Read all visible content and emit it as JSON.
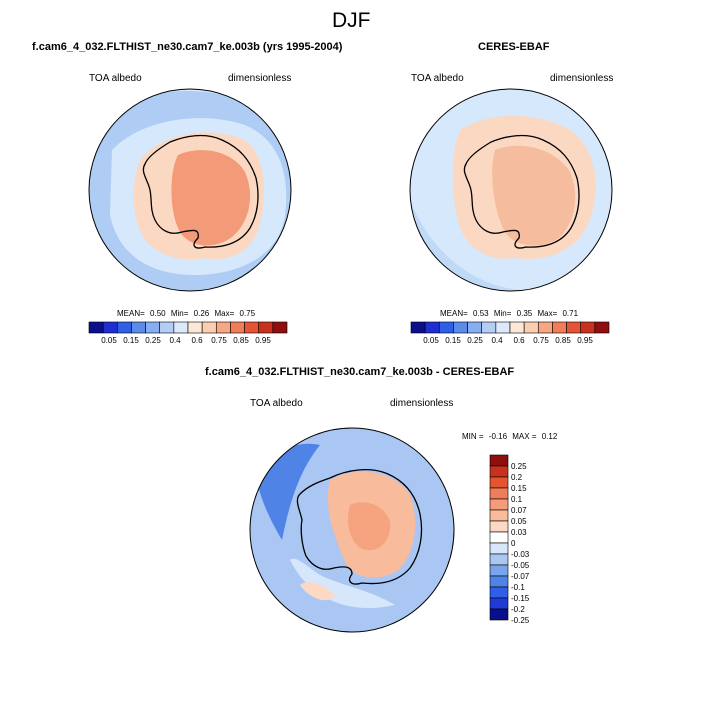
{
  "figure": {
    "title": "DJF",
    "colors": {
      "ocean": "#d6e8fb",
      "ocean_low": "#b7d2f6",
      "ocean_mid": "#8fb5ef",
      "ice_low": "#fbd8c2",
      "ice_mid": "#f5b595",
      "ice_high": "#f39a78",
      "coast": "#000000"
    }
  },
  "panel_model": {
    "title": "f.cam6_4_032.FLTHIST_ne30.cam7_ke.003b (yrs 1995-2004)",
    "left_label": "TOA albedo",
    "right_label": "dimensionless",
    "stats": {
      "mean_label": "MEAN=",
      "mean": "0.50",
      "min_label": "Min=",
      "min": "0.26",
      "max_label": "Max=",
      "max": "0.75"
    }
  },
  "panel_obs": {
    "title": "CERES-EBAF",
    "left_label": "TOA albedo",
    "right_label": "dimensionless",
    "stats": {
      "mean_label": "MEAN=",
      "mean": "0.53",
      "min_label": "Min=",
      "min": "0.35",
      "max_label": "Max=",
      "max": "0.71"
    }
  },
  "panel_diff": {
    "title": "f.cam6_4_032.FLTHIST_ne30.cam7_ke.003b - CERES-EBAF",
    "left_label": "TOA albedo",
    "right_label": "dimensionless",
    "stats": {
      "min_label": "MIN =",
      "min": "-0.16",
      "max_label": "MAX =",
      "max": "0.12"
    }
  },
  "colorbar_abs": {
    "colors": [
      "#0a0f8c",
      "#1f2ed0",
      "#2f5fe6",
      "#5d8be9",
      "#86aef0",
      "#b3cdf5",
      "#dbe9fb",
      "#fde7d6",
      "#fbcdb1",
      "#f6a783",
      "#ef7d58",
      "#e55535",
      "#c9311f",
      "#8e0f0e"
    ],
    "labels": [
      "0.05",
      "0.15",
      "0.25",
      "0.4",
      "0.6",
      "0.75",
      "0.85",
      "0.95"
    ]
  },
  "colorbar_diff": {
    "colors": [
      "#8e0f0e",
      "#c9311f",
      "#e5532f",
      "#ef7d58",
      "#f49d78",
      "#f8bc9c",
      "#fbd9c4",
      "#ffffff",
      "#d6e6fb",
      "#aac7f4",
      "#7aa5ec",
      "#4f83e6",
      "#2f5fe6",
      "#1f3ad6",
      "#0a0f8c"
    ],
    "labels": [
      "0.25",
      "0.2",
      "0.15",
      "0.1",
      "0.07",
      "0.05",
      "0.03",
      "0",
      "-0.03",
      "-0.05",
      "-0.07",
      "-0.1",
      "-0.15",
      "-0.2",
      "-0.25"
    ]
  },
  "chart_data": [
    {
      "type": "heatmap",
      "title": "f.cam6_4_032.FLTHIST_ne30.cam7_ke.003b (yrs 1995-2004)",
      "variable": "TOA albedo",
      "units": "dimensionless",
      "season": "DJF",
      "projection": "south polar stereographic",
      "mean": 0.5,
      "min": 0.26,
      "max": 0.75,
      "levels": [
        0.05,
        0.1,
        0.15,
        0.2,
        0.25,
        0.3,
        0.4,
        0.5,
        0.6,
        0.7,
        0.75,
        0.8,
        0.85,
        0.9,
        0.95
      ]
    },
    {
      "type": "heatmap",
      "title": "CERES-EBAF",
      "variable": "TOA albedo",
      "units": "dimensionless",
      "season": "DJF",
      "projection": "south polar stereographic",
      "mean": 0.53,
      "min": 0.35,
      "max": 0.71,
      "levels": [
        0.05,
        0.1,
        0.15,
        0.2,
        0.25,
        0.3,
        0.4,
        0.5,
        0.6,
        0.7,
        0.75,
        0.8,
        0.85,
        0.9,
        0.95
      ]
    },
    {
      "type": "heatmap",
      "title": "f.cam6_4_032.FLTHIST_ne30.cam7_ke.003b - CERES-EBAF",
      "variable": "TOA albedo",
      "units": "dimensionless",
      "season": "DJF",
      "projection": "south polar stereographic",
      "min": -0.16,
      "max": 0.12,
      "levels": [
        -0.25,
        -0.2,
        -0.15,
        -0.1,
        -0.07,
        -0.05,
        -0.03,
        0,
        0.03,
        0.05,
        0.07,
        0.1,
        0.15,
        0.2,
        0.25
      ]
    }
  ]
}
